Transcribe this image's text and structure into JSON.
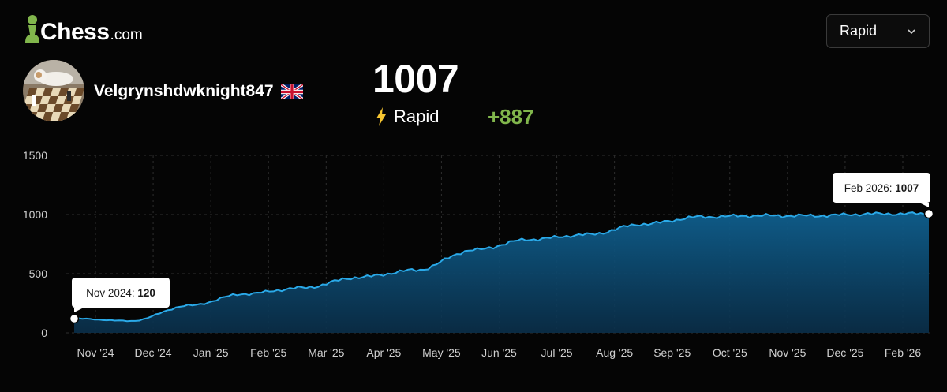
{
  "header": {
    "logo_text": "Chess",
    "logo_suffix": ".com",
    "mode_select": {
      "selected": "Rapid"
    }
  },
  "player": {
    "username": "Velgrynshdwknight847",
    "flag": "uk-flag-icon",
    "avatar": "avatar-image"
  },
  "stats": {
    "rating": "1007",
    "mode_label": "Rapid",
    "mode_icon": "lightning-bolt-icon",
    "rating_change": "+887"
  },
  "colors": {
    "background": "#050505",
    "line": "#2aa9e8",
    "fill": "#0f5f8e",
    "positive": "#81b64c",
    "bolt": "#f7c631",
    "grid": "#2e2e2e"
  },
  "chart_data": {
    "type": "area",
    "title": "",
    "xlabel": "",
    "ylabel": "",
    "ylim": [
      0,
      1500
    ],
    "yticks": [
      "0",
      "500",
      "1000",
      "1500"
    ],
    "grid": true,
    "x_tick_labels": [
      "Nov '24",
      "Dec '24",
      "Jan '25",
      "Feb '25",
      "Mar '25",
      "Apr '25",
      "May '25",
      "Jun '25",
      "Jul '25",
      "Aug '25",
      "Sep '25",
      "Oct '25",
      "Nov '25",
      "Dec '25",
      "Feb '26"
    ],
    "series": [
      {
        "x": [
          "2024-11",
          "2024-12",
          "2025-01",
          "2025-02",
          "2025-03",
          "2025-04",
          "2025-05",
          "2025-06",
          "2025-07",
          "2025-08",
          "2025-09",
          "2025-10",
          "2025-11",
          "2025-12",
          "2026-01",
          "2026-02"
        ],
        "values": [
          120,
          100,
          230,
          330,
          380,
          470,
          530,
          700,
          790,
          830,
          920,
          980,
          990,
          990,
          1005,
          1007
        ]
      }
    ],
    "annotations": [
      {
        "prefix": "Nov 2024: ",
        "value": "120",
        "x": "2024-11"
      },
      {
        "prefix": "Feb 2026: ",
        "value": "1007",
        "x": "2026-02"
      }
    ]
  }
}
